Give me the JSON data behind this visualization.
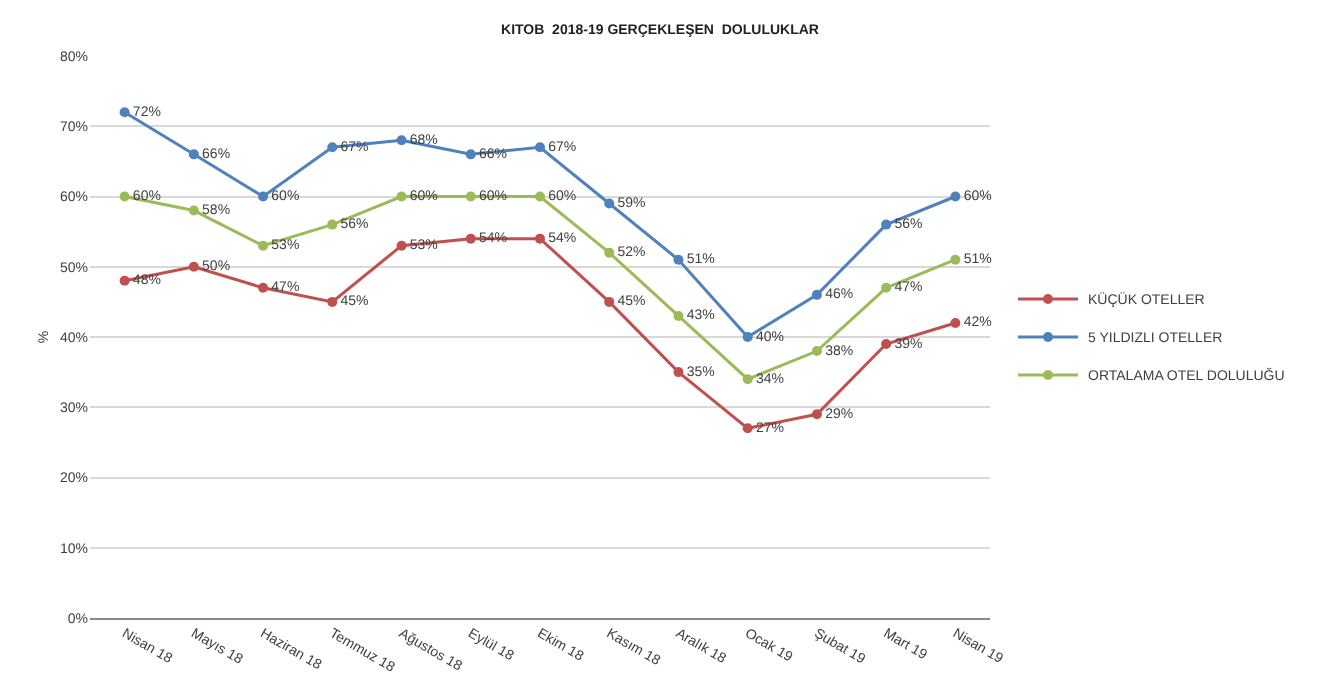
{
  "chart_data": {
    "type": "line",
    "title": "KITOB  2018-19 GERÇEKLEŞEN  DOLULUKLAR",
    "ylabel": "%",
    "categories": [
      "Nisan 18",
      "Mayıs 18",
      "Haziran 18",
      "Temmuz 18",
      "Ağustos 18",
      "Eylül 18",
      "Ekim 18",
      "Kasım 18",
      "Aralık 18",
      "Ocak 19",
      "Şubat 19",
      "Mart 19",
      "Nisan 19"
    ],
    "series": [
      {
        "name": "KÜÇÜK OTELLER",
        "color": "#c0504d",
        "values": [
          48,
          50,
          47,
          45,
          53,
          54,
          54,
          45,
          35,
          27,
          29,
          39,
          42
        ],
        "value_labels": [
          "48%",
          "50%",
          "47%",
          "45%",
          "53%",
          "54%",
          "54%",
          "45%",
          "35%",
          "27%",
          "29%",
          "39%",
          "42%"
        ]
      },
      {
        "name": "5 YILDIZLI OTELLER",
        "color": "#4f81bd",
        "values": [
          72,
          66,
          60,
          67,
          68,
          66,
          67,
          59,
          51,
          40,
          46,
          56,
          60
        ],
        "value_labels": [
          "72%",
          "66%",
          "60%",
          "67%",
          "68%",
          "66%",
          "67%",
          "59%",
          "51%",
          "40%",
          "46%",
          "56%",
          "60%"
        ]
      },
      {
        "name": "ORTALAMA OTEL DOLULUĞU",
        "color": "#9bbb59",
        "values": [
          60,
          58,
          53,
          56,
          60,
          60,
          60,
          52,
          43,
          34,
          38,
          47,
          51
        ],
        "value_labels": [
          "60%",
          "58%",
          "53%",
          "56%",
          "60%",
          "60%",
          "60%",
          "52%",
          "43%",
          "34%",
          "38%",
          "47%",
          "51%"
        ]
      }
    ],
    "ylim": [
      0,
      80
    ],
    "yticks": [
      {
        "value": 0,
        "label": "0%"
      },
      {
        "value": 10,
        "label": "10%"
      },
      {
        "value": 20,
        "label": "20%"
      },
      {
        "value": 30,
        "label": "30%"
      },
      {
        "value": 40,
        "label": "40%"
      },
      {
        "value": 50,
        "label": "50%"
      },
      {
        "value": 60,
        "label": "60%"
      },
      {
        "value": 70,
        "label": "70%"
      },
      {
        "value": 80,
        "label": "80%"
      }
    ],
    "grid": "y",
    "legend": "right",
    "marker": "circle",
    "line_style": "solid"
  }
}
